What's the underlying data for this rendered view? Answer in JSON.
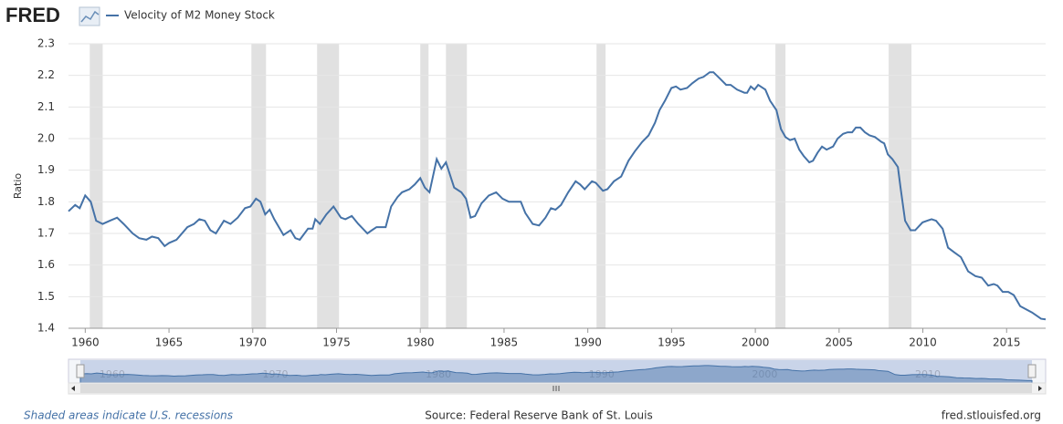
{
  "logo": "FRED",
  "chart_data": {
    "type": "line",
    "y_label": "Ratio",
    "series": [
      {
        "name": "Velocity of M2 Money Stock",
        "color": "#4572a7",
        "values": [
          1.77,
          1.79,
          1.78,
          1.82,
          1.8,
          1.74,
          1.73,
          1.74,
          1.75,
          1.73,
          1.7,
          1.685,
          1.68,
          1.69,
          1.685,
          1.66,
          1.67,
          1.68,
          1.72,
          1.73,
          1.745,
          1.74,
          1.71,
          1.7,
          1.74,
          1.73,
          1.75,
          1.78,
          1.785,
          1.81,
          1.8,
          1.76,
          1.775,
          1.745,
          1.695,
          1.71,
          1.685,
          1.68,
          1.715,
          1.715,
          1.745,
          1.73,
          1.76,
          1.785,
          1.75,
          1.745,
          1.755,
          1.73,
          1.7,
          1.71,
          1.72,
          1.72,
          1.785,
          1.815,
          1.83,
          1.84,
          1.855,
          1.875,
          1.845,
          1.83,
          1.935,
          1.905,
          1.925,
          1.845,
          1.83,
          1.81,
          1.75,
          1.755,
          1.795,
          1.82,
          1.83,
          1.81,
          1.8,
          1.8,
          1.765,
          1.73,
          1.725,
          1.75,
          1.78,
          1.775,
          1.79,
          1.83,
          1.865,
          1.855,
          1.84,
          1.865,
          1.86,
          1.835,
          1.84,
          1.865,
          1.88,
          1.93,
          1.96,
          1.99,
          2.01,
          2.05,
          2.09,
          2.12,
          2.16,
          2.165,
          2.155,
          2.16,
          2.175,
          2.19,
          2.195,
          2.21,
          2.21,
          2.19,
          2.17,
          2.17,
          2.155,
          2.145,
          2.145,
          2.165,
          2.155,
          2.17,
          2.155,
          2.12,
          2.09,
          2.03,
          2.005,
          1.995,
          2.0,
          1.965,
          1.945,
          1.925,
          1.93,
          1.955,
          1.975,
          1.965,
          1.975,
          2.0,
          2.015,
          2.02,
          2.02,
          2.035,
          2.035,
          2.02,
          2.01,
          2.005,
          1.99,
          1.985,
          1.95,
          1.935,
          1.91,
          1.845,
          1.74,
          1.71,
          1.71,
          1.735,
          1.745,
          1.74,
          1.715,
          1.655,
          1.64,
          1.625,
          1.58,
          1.565,
          1.56,
          1.535,
          1.54,
          1.535,
          1.515,
          1.515,
          1.505,
          1.47,
          1.45,
          1.43,
          1.428
        ]
      }
    ],
    "x": [
      1959.0,
      1959.4,
      1959.67,
      1960.0,
      1960.33,
      1960.65,
      1961.04,
      1961.47,
      1961.9,
      1962.29,
      1962.83,
      1963.22,
      1963.65,
      1963.98,
      1964.36,
      1964.74,
      1965.01,
      1965.45,
      1966.1,
      1966.49,
      1966.81,
      1967.14,
      1967.47,
      1967.8,
      1968.28,
      1968.67,
      1969.1,
      1969.54,
      1969.86,
      1970.19,
      1970.46,
      1970.74,
      1971.01,
      1971.28,
      1971.83,
      1972.26,
      1972.54,
      1972.81,
      1973.3,
      1973.57,
      1973.73,
      1974.01,
      1974.39,
      1974.82,
      1975.26,
      1975.53,
      1975.91,
      1976.3,
      1976.84,
      1977.11,
      1977.39,
      1977.93,
      1978.26,
      1978.64,
      1978.91,
      1979.35,
      1979.67,
      1980.0,
      1980.27,
      1980.55,
      1980.98,
      1981.26,
      1981.53,
      1982.02,
      1982.45,
      1982.73,
      1983.0,
      1983.27,
      1983.65,
      1984.09,
      1984.53,
      1984.91,
      1985.29,
      1986.0,
      1986.27,
      1986.71,
      1987.09,
      1987.47,
      1987.8,
      1988.07,
      1988.4,
      1988.83,
      1989.27,
      1989.54,
      1989.81,
      1990.25,
      1990.47,
      1990.9,
      1991.17,
      1991.56,
      1991.99,
      1992.43,
      1992.81,
      1993.25,
      1993.63,
      1994.01,
      1994.28,
      1994.61,
      1994.99,
      1995.26,
      1995.53,
      1995.92,
      1996.24,
      1996.62,
      1996.9,
      1997.28,
      1997.5,
      1997.88,
      1998.26,
      1998.53,
      1998.91,
      1999.35,
      1999.51,
      1999.73,
      1999.95,
      2000.17,
      2000.6,
      2000.88,
      2001.26,
      2001.53,
      2001.8,
      2002.07,
      2002.35,
      2002.62,
      2002.89,
      2003.22,
      2003.44,
      2003.71,
      2003.98,
      2004.25,
      2004.64,
      2004.91,
      2005.24,
      2005.51,
      2005.78,
      2006.0,
      2006.27,
      2006.54,
      2006.82,
      2007.14,
      2007.52,
      2007.69,
      2007.91,
      2008.18,
      2008.51,
      2008.67,
      2008.94,
      2009.27,
      2009.54,
      2009.98,
      2010.52,
      2010.79,
      2011.18,
      2011.5,
      2011.88,
      2012.27,
      2012.7,
      2013.14,
      2013.52,
      2013.9,
      2014.23,
      2014.45,
      2014.77,
      2015.1,
      2015.43,
      2015.81,
      2016.52,
      2017.06,
      2017.33
    ],
    "recessions": [
      [
        1960.27,
        1961.04
      ],
      [
        1969.92,
        1970.79
      ],
      [
        1973.84,
        1975.15
      ],
      [
        1980.0,
        1980.49
      ],
      [
        1981.53,
        1982.78
      ],
      [
        1990.52,
        1991.06
      ],
      [
        2001.2,
        2001.8
      ],
      [
        2007.96,
        2009.32
      ]
    ],
    "recession_color": "#e1e1e1",
    "xlim": [
      1959.0,
      2017.33
    ],
    "xticks": [
      1960,
      1965,
      1970,
      1975,
      1980,
      1985,
      1990,
      1995,
      2000,
      2005,
      2010,
      2015
    ],
    "ylim": [
      1.4,
      2.3
    ],
    "yticks": [
      1.4,
      1.5,
      1.6,
      1.7,
      1.8,
      1.9,
      {
        "value": 2,
        "label": "2.0"
      },
      2.1,
      2.2,
      2.3
    ],
    "grid": true,
    "navigator_ticks": [
      1960,
      1970,
      1980,
      1990,
      2000,
      2010
    ],
    "recession_note": "Shaded areas indicate U.S. recessions",
    "source": "Source: Federal Reserve Bank of St. Louis",
    "site": "fred.stlouisfed.org"
  }
}
